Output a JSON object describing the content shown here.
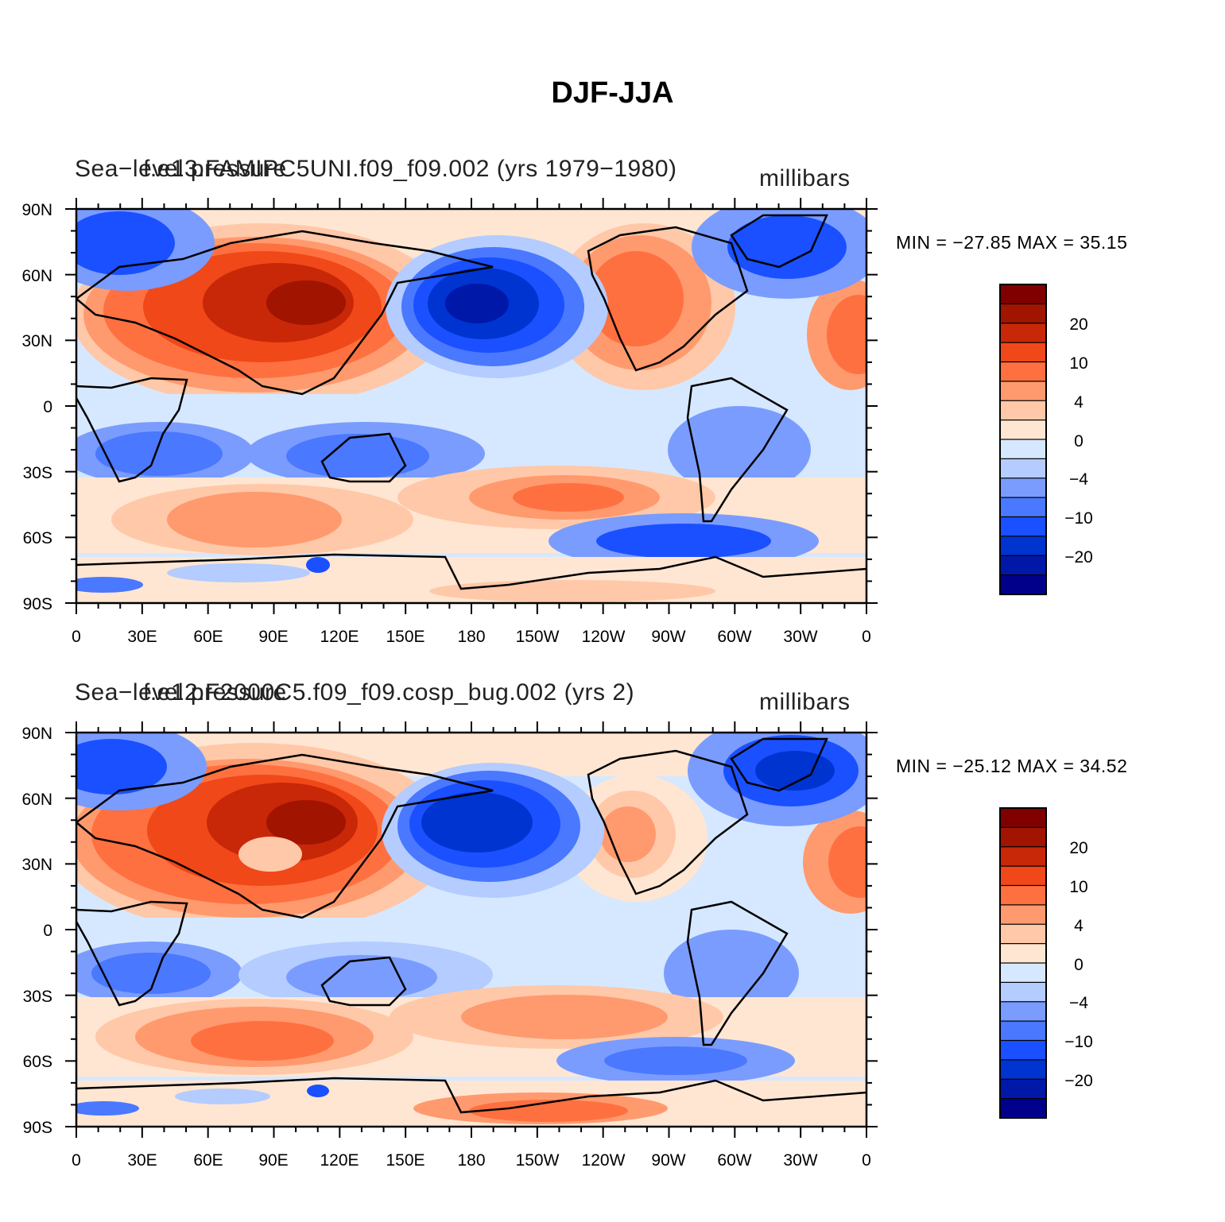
{
  "title": "DJF-JJA",
  "colors": {
    "levels": [
      "#00008b",
      "#0018a8",
      "#0034d0",
      "#1a50ff",
      "#4a78ff",
      "#7a9cff",
      "#b4ccff",
      "#d6e8ff",
      "#ffe6d2",
      "#ffc8a8",
      "#ff9a6e",
      "#ff7040",
      "#f04818",
      "#c82808",
      "#a01400",
      "#800000"
    ],
    "coastline": "#000000"
  },
  "panels": [
    {
      "left_title": "Sea−level pressure",
      "center_title": "f.e13.FAMIPC5UNI.f09_f09.002 (yrs 1979−1980)",
      "units": "millibars",
      "min_max": "MIN = −27.85 MAX =  35.15",
      "lat_labels": [
        "90N",
        "60N",
        "30N",
        "0",
        "30S",
        "60S",
        "90S"
      ],
      "lon_labels": [
        "0",
        "30E",
        "60E",
        "90E",
        "120E",
        "150E",
        "180",
        "150W",
        "120W",
        "90W",
        "60W",
        "30W",
        "0"
      ],
      "colorbar_labels": [
        "20",
        "10",
        "4",
        "0",
        "−4",
        "−10",
        "−20"
      ]
    },
    {
      "left_title": "Sea−level pressure",
      "center_title": "f.e12.F2000C5.f09_f09.cosp_bug.002 (yrs 2)",
      "units": "millibars",
      "min_max": "MIN = −25.12 MAX =  34.52",
      "lat_labels": [
        "90N",
        "60N",
        "30N",
        "0",
        "30S",
        "60S",
        "90S"
      ],
      "lon_labels": [
        "0",
        "30E",
        "60E",
        "90E",
        "120E",
        "150E",
        "180",
        "150W",
        "120W",
        "90W",
        "60W",
        "30W",
        "0"
      ],
      "colorbar_labels": [
        "20",
        "10",
        "4",
        "0",
        "−4",
        "−10",
        "−20"
      ]
    }
  ]
}
